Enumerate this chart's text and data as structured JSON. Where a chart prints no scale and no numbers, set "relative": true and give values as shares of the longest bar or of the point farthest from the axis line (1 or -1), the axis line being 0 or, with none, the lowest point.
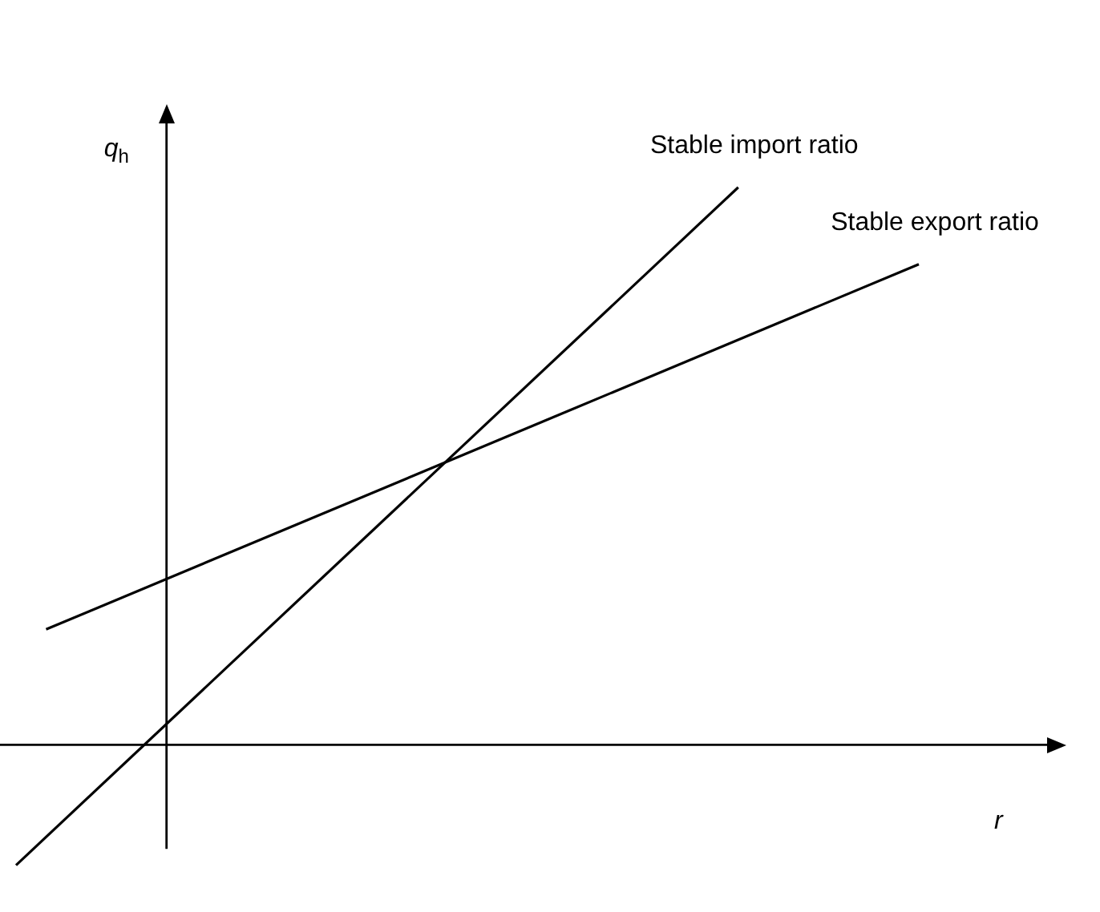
{
  "chart_data": {
    "type": "line",
    "relative": true,
    "xlabel": "r",
    "ylabel": "q$_{h}$",
    "tick_labels": false,
    "grid": false,
    "legend": false,
    "marker": "none",
    "line_style": "solid",
    "categories": [
      null,
      null,
      null,
      null,
      null,
      null,
      null,
      null,
      null,
      null,
      null,
      null,
      null,
      null,
      null,
      null,
      null,
      null,
      null,
      null,
      null,
      null,
      null,
      null,
      null,
      null,
      null,
      null,
      null,
      null,
      null
    ],
    "series": [
      {
        "name": "Stable import ratio",
        "color": "#000000",
        "values": [
          -0.216,
          null,
          null,
          null,
          null,
          null,
          null,
          null,
          null,
          null,
          null,
          null,
          null,
          null,
          null,
          null,
          null,
          null,
          null,
          null,
          null,
          null,
          null,
          null,
          1,
          null,
          null,
          null,
          null,
          null,
          null
        ]
      },
      {
        "name": "Stable export ratio",
        "color": "#000000",
        "values": [
          null,
          0.207,
          null,
          null,
          null,
          null,
          null,
          null,
          null,
          null,
          null,
          null,
          null,
          null,
          null,
          null,
          null,
          null,
          null,
          null,
          null,
          null,
          null,
          null,
          null,
          null,
          null,
          null,
          null,
          null,
          0.862
        ]
      }
    ]
  }
}
